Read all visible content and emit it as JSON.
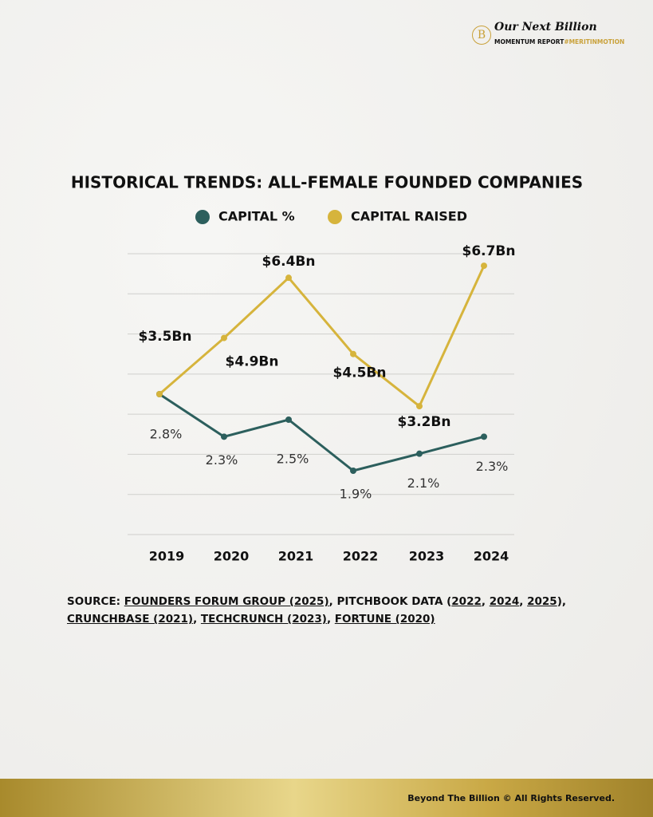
{
  "header": {
    "brand": "Our Next Billion",
    "report": "MOMENTUM REPORT",
    "hashtag": "#MERITINMOTION",
    "logo": "B"
  },
  "chart_data": {
    "type": "line",
    "title": "HISTORICAL TRENDS: ALL-FEMALE FOUNDED COMPANIES",
    "categories": [
      "2019",
      "2020",
      "2021",
      "2022",
      "2023",
      "2024"
    ],
    "ylim": [
      0,
      7
    ],
    "yticks": [
      0,
      1,
      2,
      3,
      4,
      5,
      6,
      7
    ],
    "grid": true,
    "y2lim": [
      1.15,
      4.45
    ],
    "series": [
      {
        "name": "CAPITAL %",
        "color": "#2c5f5d",
        "axis": "y2",
        "values": [
          2.8,
          2.3,
          2.5,
          1.9,
          2.1,
          2.3
        ],
        "value_labels": [
          "2.8%",
          "2.3%",
          "2.5%",
          "1.9%",
          "2.1%",
          "2.3%"
        ]
      },
      {
        "name": "CAPITAL RAISED",
        "color": "#d6b43c",
        "values": [
          3.5,
          4.9,
          6.4,
          4.5,
          3.2,
          6.7
        ],
        "value_labels": [
          "$3.5Bn",
          "$4.9Bn",
          "$6.4Bn",
          "$4.5Bn",
          "$3.2Bn",
          "$6.7Bn"
        ]
      }
    ]
  },
  "source": [
    {
      "text": "SOURCE: "
    },
    {
      "text": "FOUNDERS FORUM GROUP (2025)",
      "link": true
    },
    {
      "text": ", PITCHBOOK DATA ("
    },
    {
      "text": "2022",
      "link": true
    },
    {
      "text": ", "
    },
    {
      "text": "2024",
      "link": true
    },
    {
      "text": ", "
    },
    {
      "text": "2025",
      "link": true
    },
    {
      "text": "), "
    },
    {
      "text": "CRUNCHBASE (2021)",
      "link": true
    },
    {
      "text": ", "
    },
    {
      "text": "TECHCRUNCH (2023)",
      "link": true
    },
    {
      "text": ", "
    },
    {
      "text": "FORTUNE (2020)",
      "link": true
    }
  ],
  "footer": "Beyond The Billion © All Rights Reserved."
}
